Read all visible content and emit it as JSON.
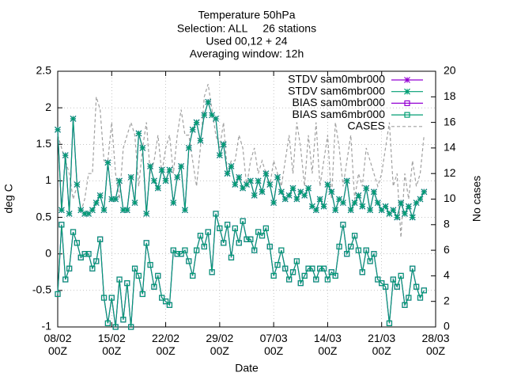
{
  "chart_data": {
    "type": "line",
    "title": [
      "Temperature 50hPa",
      "Selection: ALL     26 stations",
      "Used 00,12 + 24",
      "Averaging window: 12h"
    ],
    "xlabel": "Date",
    "ylabel": "deg C",
    "y2label": "No cases",
    "x": [
      0,
      0.5,
      1,
      1.5,
      2,
      2.5,
      3,
      3.5,
      4,
      4.5,
      5,
      5.5,
      6,
      6.5,
      7,
      7.5,
      8,
      8.5,
      9,
      9.5,
      10,
      10.5,
      11,
      11.5,
      12,
      12.5,
      13,
      13.5,
      14,
      14.5,
      15,
      15.5,
      16,
      16.5,
      17,
      17.5,
      18,
      18.5,
      19,
      19.5,
      20,
      20.5,
      21,
      21.5,
      22,
      22.5,
      23,
      23.5,
      24,
      24.5,
      25,
      25.5,
      26,
      26.5,
      27,
      27.5,
      28,
      28.5,
      29,
      29.5,
      30,
      30.5,
      31,
      31.5,
      32,
      32.5,
      33,
      33.5,
      34,
      34.5,
      35,
      35.5,
      36,
      36.5,
      37,
      37.5,
      38,
      38.5,
      39,
      39.5,
      40,
      40.5,
      41,
      41.5,
      42,
      42.5,
      43,
      43.5,
      44,
      44.5,
      45,
      45.5,
      46,
      46.5,
      47,
      47.5
    ],
    "xlim": [
      0,
      49
    ],
    "xticks": [
      {
        "value": 0,
        "label": "08/02\n00Z"
      },
      {
        "value": 7,
        "label": "15/02\n00Z"
      },
      {
        "value": 14,
        "label": "22/02\n00Z"
      },
      {
        "value": 21,
        "label": "29/02\n00Z"
      },
      {
        "value": 28,
        "label": "07/03\n00Z"
      },
      {
        "value": 35,
        "label": "14/03\n00Z"
      },
      {
        "value": 42,
        "label": "21/03\n00Z"
      },
      {
        "value": 49,
        "label": "28/03\n00Z"
      }
    ],
    "ylim": [
      -1,
      2.5
    ],
    "yticks": [
      -1,
      -0.5,
      0,
      0.5,
      1,
      1.5,
      2,
      2.5
    ],
    "y2lim": [
      0,
      20
    ],
    "y2ticks": [
      0,
      2,
      4,
      6,
      8,
      10,
      12,
      14,
      16,
      18,
      20
    ],
    "grid": true,
    "legend": "top right",
    "series": [
      {
        "name": "STDV sam0mbr000",
        "color": "#9400d3",
        "marker": "star",
        "values": [
          1.7,
          0.6,
          1.35,
          0.55,
          1.85,
          0.95,
          0.6,
          0.55,
          0.55,
          0.6,
          0.7,
          0.8,
          0.6,
          1.25,
          0.75,
          0.75,
          1.0,
          0.6,
          0.6,
          1.05,
          0.7,
          1.65,
          1.45,
          0.55,
          1.2,
          1.0,
          0.9,
          1.15,
          1.0,
          1.15,
          0.7,
          1.05,
          1.2,
          0.6,
          1.45,
          1.7,
          1.8,
          1.55,
          1.9,
          2.08,
          1.9,
          1.85,
          1.35,
          1.5,
          1.1,
          1.2,
          0.95,
          1.05,
          0.9,
          0.95,
          1.0,
          0.8,
          1.0,
          0.85,
          1.1,
          0.95,
          0.7,
          1.05,
          0.85,
          0.75,
          0.8,
          0.9,
          0.75,
          0.85,
          0.8,
          0.9,
          0.65,
          0.6,
          0.75,
          0.65,
          0.95,
          0.85,
          0.6,
          0.75,
          0.7,
          1.0,
          0.6,
          0.7,
          0.8,
          0.65,
          0.9,
          0.6,
          0.85,
          0.7,
          0.6,
          0.65,
          0.55,
          0.6,
          0.5,
          0.7,
          0.55,
          0.65,
          0.5,
          0.7,
          0.75,
          0.85
        ]
      },
      {
        "name": "STDV sam6mbr000",
        "color": "#009e73",
        "marker": "star",
        "values": [
          1.7,
          0.6,
          1.35,
          0.55,
          1.85,
          0.95,
          0.6,
          0.55,
          0.55,
          0.6,
          0.7,
          0.8,
          0.6,
          1.25,
          0.75,
          0.75,
          1.0,
          0.6,
          0.6,
          1.05,
          0.7,
          1.65,
          1.45,
          0.55,
          1.2,
          1.0,
          0.9,
          1.15,
          1.0,
          1.15,
          0.7,
          1.05,
          1.2,
          0.6,
          1.45,
          1.7,
          1.8,
          1.55,
          1.9,
          2.08,
          1.9,
          1.85,
          1.35,
          1.5,
          1.1,
          1.2,
          0.95,
          1.05,
          0.9,
          0.95,
          1.0,
          0.8,
          1.0,
          0.85,
          1.1,
          0.95,
          0.7,
          1.05,
          0.85,
          0.75,
          0.8,
          0.9,
          0.75,
          0.85,
          0.8,
          0.9,
          0.65,
          0.6,
          0.75,
          0.65,
          0.95,
          0.85,
          0.6,
          0.75,
          0.7,
          1.0,
          0.6,
          0.7,
          0.8,
          0.65,
          0.9,
          0.6,
          0.85,
          0.7,
          0.6,
          0.65,
          0.55,
          0.6,
          0.5,
          0.7,
          0.55,
          0.65,
          0.5,
          0.7,
          0.75,
          0.85
        ]
      },
      {
        "name": "BIAS sam0mbr000",
        "color": "#9400d3",
        "marker": "square",
        "values": [
          -0.55,
          0.4,
          -0.35,
          -0.2,
          0.3,
          0.15,
          -0.05,
          0.0,
          0.0,
          -0.2,
          -0.1,
          0.2,
          -0.6,
          -0.95,
          -0.6,
          -1.0,
          -0.35,
          -0.9,
          -0.4,
          -1.0,
          -0.2,
          -0.3,
          -0.55,
          0.15,
          -0.15,
          -0.45,
          -0.3,
          -0.6,
          -0.65,
          -0.7,
          0.05,
          0.0,
          0.0,
          0.05,
          -0.1,
          -0.3,
          0.05,
          0.25,
          0.1,
          0.3,
          -0.25,
          0.55,
          0.35,
          0.15,
          0.4,
          -0.05,
          0.35,
          0.15,
          0.45,
          0.2,
          0.2,
          0.05,
          0.3,
          0.25,
          0.35,
          0.1,
          -0.3,
          -0.15,
          0.05,
          -0.2,
          -0.35,
          -0.25,
          -0.1,
          -0.4,
          -0.3,
          -0.2,
          -0.2,
          -0.35,
          -0.2,
          -0.2,
          -0.35,
          -0.25,
          -0.3,
          0.1,
          0.4,
          0.0,
          0.1,
          0.25,
          0.05,
          -0.25,
          0.05,
          -0.1,
          0.0,
          -0.35,
          -0.4,
          -0.45,
          -0.95,
          -0.35,
          -0.45,
          -0.3,
          -0.7,
          -0.6,
          -0.2,
          -0.45,
          -0.6,
          -0.5
        ]
      },
      {
        "name": "BIAS sam6mbr000",
        "color": "#009e73",
        "marker": "square",
        "values": [
          -0.55,
          0.4,
          -0.35,
          -0.2,
          0.3,
          0.15,
          -0.05,
          0.0,
          0.0,
          -0.2,
          -0.1,
          0.2,
          -0.6,
          -0.95,
          -0.6,
          -1.0,
          -0.35,
          -0.9,
          -0.4,
          -1.0,
          -0.2,
          -0.3,
          -0.55,
          0.15,
          -0.15,
          -0.45,
          -0.3,
          -0.6,
          -0.65,
          -0.7,
          0.05,
          0.0,
          0.0,
          0.05,
          -0.1,
          -0.3,
          0.05,
          0.25,
          0.1,
          0.3,
          -0.25,
          0.55,
          0.35,
          0.15,
          0.4,
          -0.05,
          0.35,
          0.15,
          0.45,
          0.2,
          0.2,
          0.05,
          0.3,
          0.25,
          0.35,
          0.1,
          -0.3,
          -0.15,
          0.05,
          -0.2,
          -0.35,
          -0.25,
          -0.1,
          -0.4,
          -0.3,
          -0.2,
          -0.2,
          -0.35,
          -0.2,
          -0.2,
          -0.35,
          -0.25,
          -0.3,
          0.1,
          0.4,
          0.0,
          0.1,
          0.25,
          0.05,
          -0.25,
          0.05,
          -0.1,
          0.0,
          -0.35,
          -0.4,
          -0.45,
          -0.95,
          -0.35,
          -0.45,
          -0.3,
          -0.7,
          -0.6,
          -0.2,
          -0.45,
          -0.6,
          -0.5
        ]
      },
      {
        "name": "CASES",
        "color": "#a0a0a0",
        "marker": "none",
        "dashed": true,
        "axis": "y2",
        "values": [
          15,
          14,
          13,
          12,
          10,
          11,
          9,
          10,
          12,
          12,
          18,
          17,
          13,
          13,
          16,
          12,
          10,
          14,
          15,
          16,
          15,
          11,
          14,
          16,
          12,
          13,
          15,
          12,
          14,
          15,
          12,
          15,
          17,
          15,
          15,
          13,
          11,
          14,
          18,
          19,
          17,
          15,
          14,
          16,
          12,
          13,
          13,
          15,
          14,
          11,
          13,
          14,
          12,
          13,
          12,
          11,
          13,
          12,
          11,
          13,
          15,
          12,
          16,
          14,
          11,
          15,
          12,
          16,
          11,
          13,
          15,
          10,
          16,
          14,
          11,
          13,
          15,
          10,
          12,
          11,
          14,
          13,
          12,
          11,
          12,
          14,
          16,
          11,
          12,
          7,
          12,
          10,
          13,
          11,
          12,
          15
        ]
      }
    ]
  }
}
